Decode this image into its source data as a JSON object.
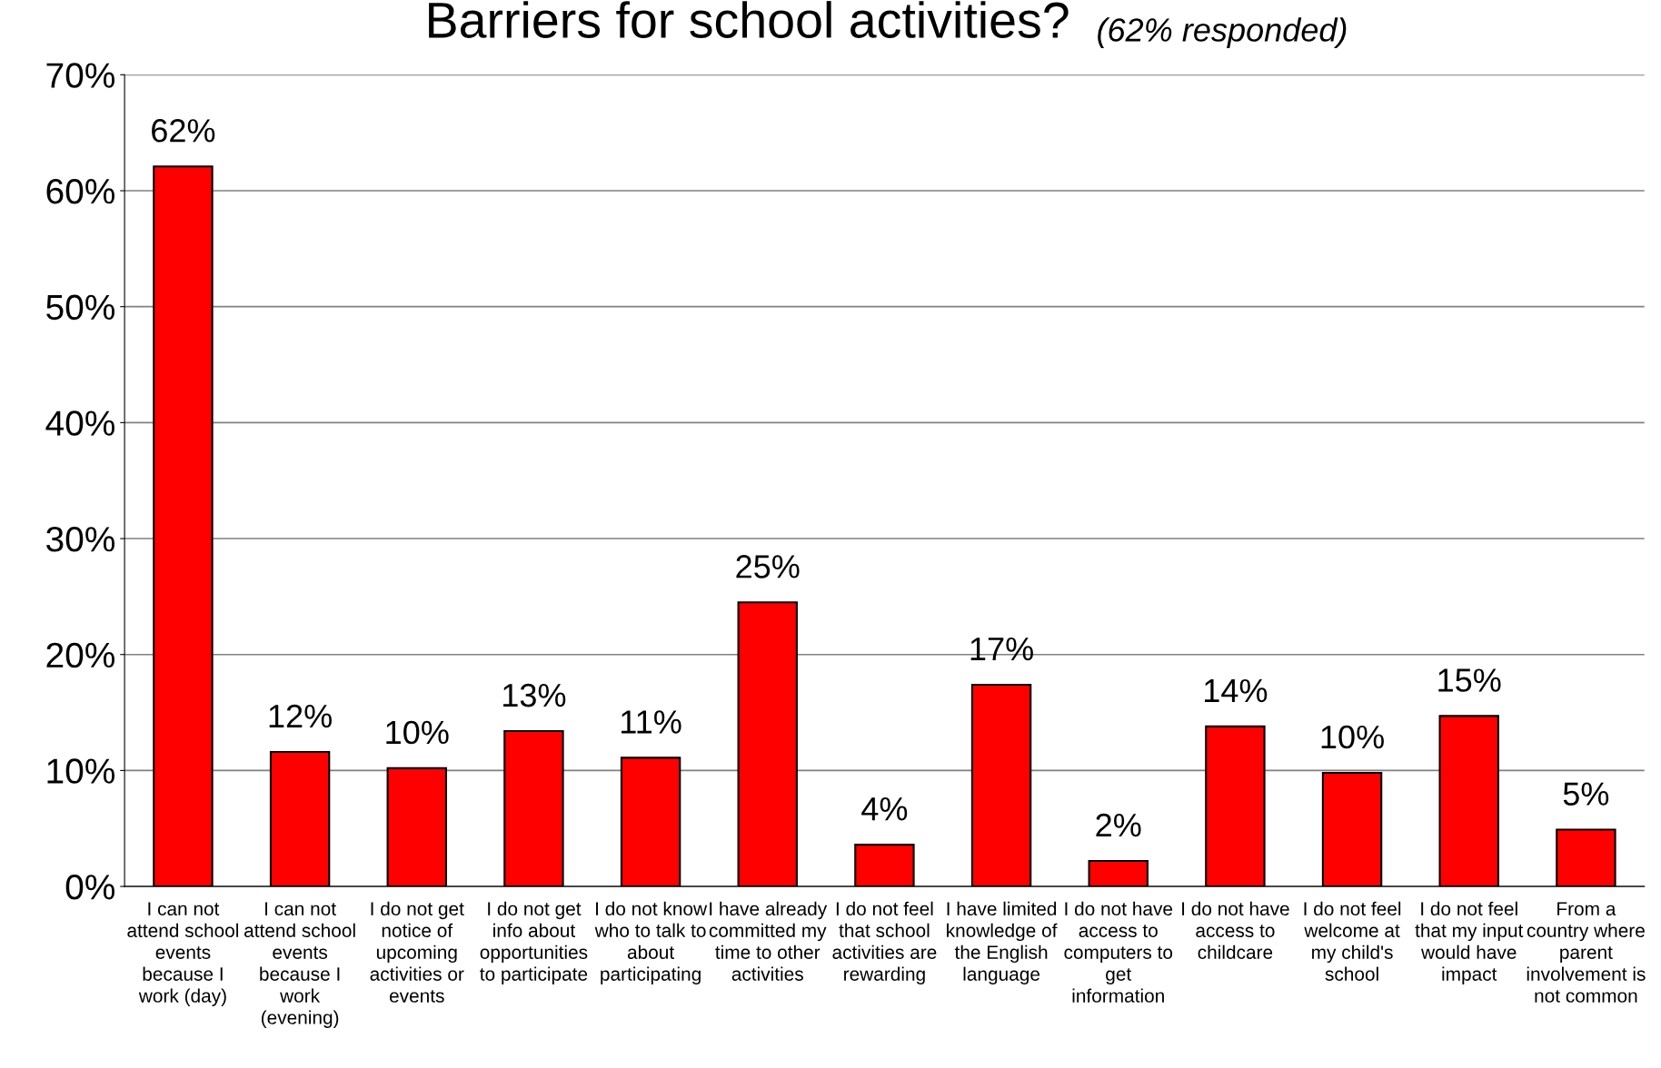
{
  "chart_data": {
    "type": "bar",
    "title": "Barriers for school activities?",
    "subtitle": "(62% responded)",
    "categories": [
      "I can not\nattend school\nevents\nbecause I\nwork (day)",
      "I can not\nattend school\nevents\nbecause I\nwork\n(evening)",
      "I do not get\nnotice of\nupcoming\nactivities or\nevents",
      "I do not get\ninfo about\nopportunities\nto participate",
      "I do not know\nwho to talk to\nabout\nparticipating",
      "I have already\ncommitted my\ntime to other\nactivities",
      "I do not feel\nthat school\nactivities are\nrewarding",
      "I have limited\nknowledge of\nthe English\nlanguage",
      "I do not have\naccess to\ncomputers to\nget\ninformation",
      "I do not have\naccess to\nchildcare",
      "I do not feel\nwelcome at\nmy child's\nschool",
      "I do not feel\nthat my input\nwould have\nimpact",
      "From a\ncountry where\nparent\ninvolvement is\nnot common"
    ],
    "values": [
      62.1,
      11.6,
      10.2,
      13.4,
      11.1,
      24.5,
      3.6,
      17.4,
      2.2,
      13.8,
      9.8,
      14.7,
      4.9
    ],
    "value_labels": [
      "62%",
      "12%",
      "10%",
      "13%",
      "11%",
      "25%",
      "4%",
      "17%",
      "2%",
      "14%",
      "10%",
      "15%",
      "5%"
    ],
    "color": "#ff0000",
    "grid": "y",
    "legend": false,
    "ylim": [
      0,
      70
    ],
    "yticks": [
      {
        "value": 0,
        "label": "0%"
      },
      {
        "value": 10,
        "label": "10%"
      },
      {
        "value": 20,
        "label": "20%"
      },
      {
        "value": 30,
        "label": "30%"
      },
      {
        "value": 40,
        "label": "40%"
      },
      {
        "value": 50,
        "label": "50%"
      },
      {
        "value": 60,
        "label": "60%"
      },
      {
        "value": 70,
        "label": "70%"
      }
    ]
  }
}
